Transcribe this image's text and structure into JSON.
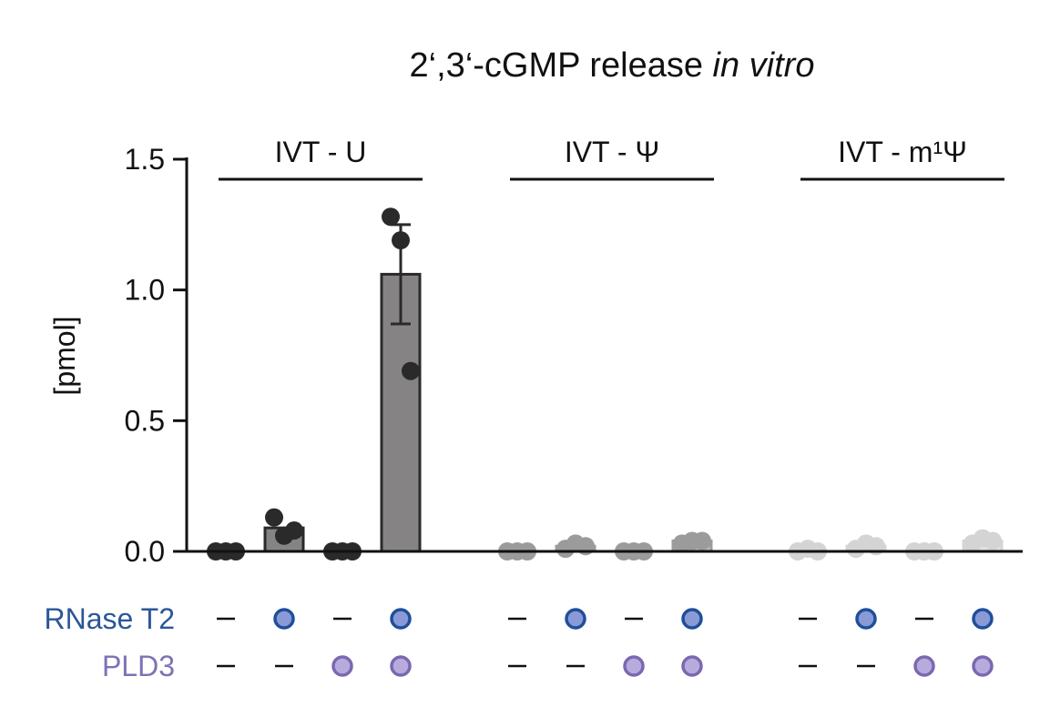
{
  "chart_data": {
    "type": "bar",
    "title_main": "2‘,3‘-cGMP release ",
    "title_italic": "in vitro",
    "ylabel": "[pmol]",
    "ylim": [
      0,
      1.5
    ],
    "yticks": [
      "0.0",
      "0.5",
      "1.0",
      "1.5"
    ],
    "ytick_values": [
      0.0,
      0.5,
      1.0,
      1.5
    ],
    "groups": [
      {
        "label": "IVT - U",
        "color": "#2a2a2a",
        "bar_fill": "#858383",
        "conditions": [
          {
            "rnase_t2": false,
            "pld3": false,
            "mean": 0.0,
            "error": 0.0,
            "points": [
              0.0,
              0.0,
              0.0
            ]
          },
          {
            "rnase_t2": true,
            "pld3": false,
            "mean": 0.09,
            "error": 0.0,
            "points": [
              0.13,
              0.06,
              0.08
            ]
          },
          {
            "rnase_t2": false,
            "pld3": true,
            "mean": 0.0,
            "error": 0.0,
            "points": [
              0.0,
              0.0,
              0.0
            ]
          },
          {
            "rnase_t2": true,
            "pld3": true,
            "mean": 1.06,
            "error": 0.19,
            "points": [
              1.28,
              1.19,
              0.69
            ]
          }
        ]
      },
      {
        "label": "IVT - Ψ",
        "color": "#9b9b9b",
        "bar_fill": "#bdbdbd",
        "conditions": [
          {
            "rnase_t2": false,
            "pld3": false,
            "mean": 0.0,
            "error": 0.0,
            "points": [
              0.0,
              0.0,
              0.0
            ]
          },
          {
            "rnase_t2": true,
            "pld3": false,
            "mean": 0.02,
            "error": 0.0,
            "points": [
              0.01,
              0.03,
              0.02
            ]
          },
          {
            "rnase_t2": false,
            "pld3": true,
            "mean": 0.0,
            "error": 0.0,
            "points": [
              0.0,
              0.0,
              0.0
            ]
          },
          {
            "rnase_t2": true,
            "pld3": true,
            "mean": 0.04,
            "error": 0.0,
            "points": [
              0.03,
              0.04,
              0.04
            ]
          }
        ]
      },
      {
        "label": "IVT - m¹Ψ",
        "color": "#d4d4d4",
        "bar_fill": "#e3e3e3",
        "conditions": [
          {
            "rnase_t2": false,
            "pld3": false,
            "mean": 0.01,
            "error": 0.0,
            "points": [
              0.0,
              0.01,
              0.0
            ]
          },
          {
            "rnase_t2": true,
            "pld3": false,
            "mean": 0.02,
            "error": 0.0,
            "points": [
              0.01,
              0.03,
              0.02
            ]
          },
          {
            "rnase_t2": false,
            "pld3": true,
            "mean": 0.0,
            "error": 0.0,
            "points": [
              0.0,
              0.0,
              0.0
            ]
          },
          {
            "rnase_t2": true,
            "pld3": true,
            "mean": 0.04,
            "error": 0.0,
            "points": [
              0.03,
              0.05,
              0.04
            ]
          }
        ]
      }
    ],
    "treatment_rows": [
      {
        "label": "RNase T2",
        "key": "rnase_t2",
        "label_color": "#2b5797",
        "marker_fill": "#8a9ad6",
        "marker_stroke": "#1f4f9a"
      },
      {
        "label": "PLD3",
        "key": "pld3",
        "label_color": "#7e72b4",
        "marker_fill": "#b7abdd",
        "marker_stroke": "#7a68b0"
      }
    ],
    "absent_symbol": "–"
  }
}
